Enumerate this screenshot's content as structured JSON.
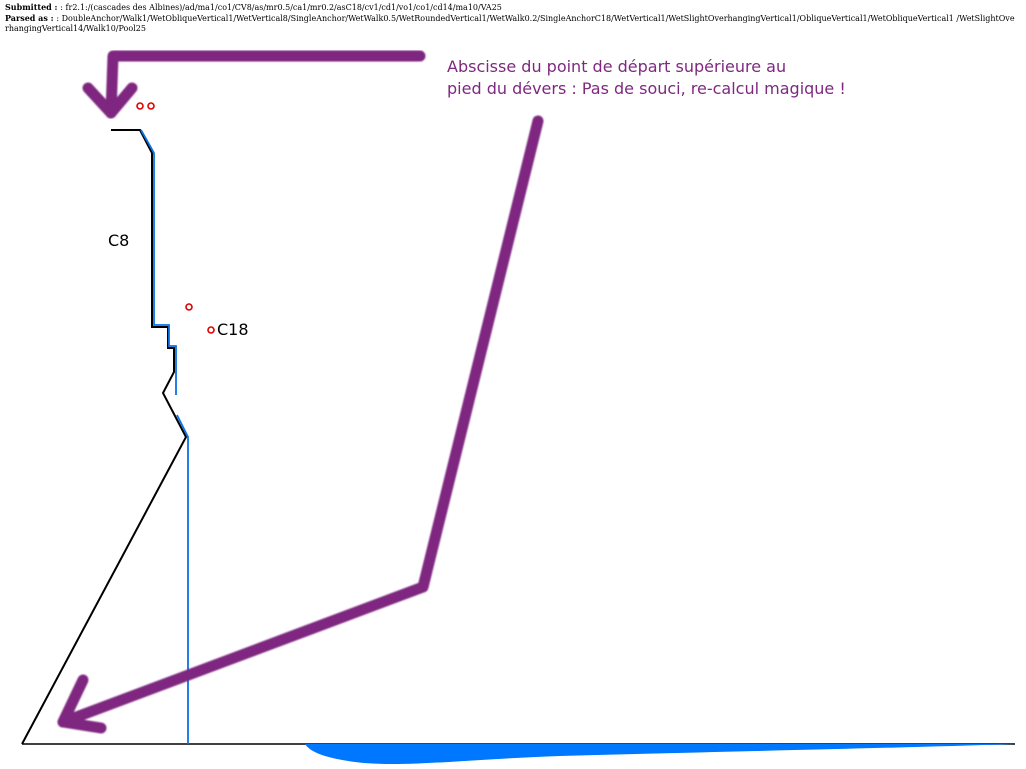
{
  "header": {
    "submitted_label": "Submitted : ",
    "submitted_value": ": fr2.1:/(cascades des Albines)/ad/ma1/co1/CV8/as/mr0.5/ca1/mr0.2/asC18/cv1/cd1/vo1/co1/cd14/ma10/VA25",
    "parsed_label": "Parsed as : ",
    "parsed_value": ": DoubleAnchor/Walk1/WetObliqueVertical1/WetVertical8/SingleAnchor/WetWalk0.5/WetRoundedVertical1/WetWalk0.2/SingleAnchorC18/WetVertical1/WetSlightOverhangingVertical1/ObliqueVertical1/WetObliqueVertical1 /WetSlightOverhangingVertical14/Walk10/Pool25"
  },
  "annotation": {
    "line1": "Abscisse du point de départ supérieure au",
    "line2": "pied du dévers : Pas de souci, re-calcul magique !"
  },
  "labels": {
    "c8": "C8",
    "c18": "C18"
  },
  "colors": {
    "profile": "#000000",
    "water": "#0a72e6",
    "pool": "#0077ff",
    "anchor": "#e00000",
    "arrow": "#7e2880"
  }
}
